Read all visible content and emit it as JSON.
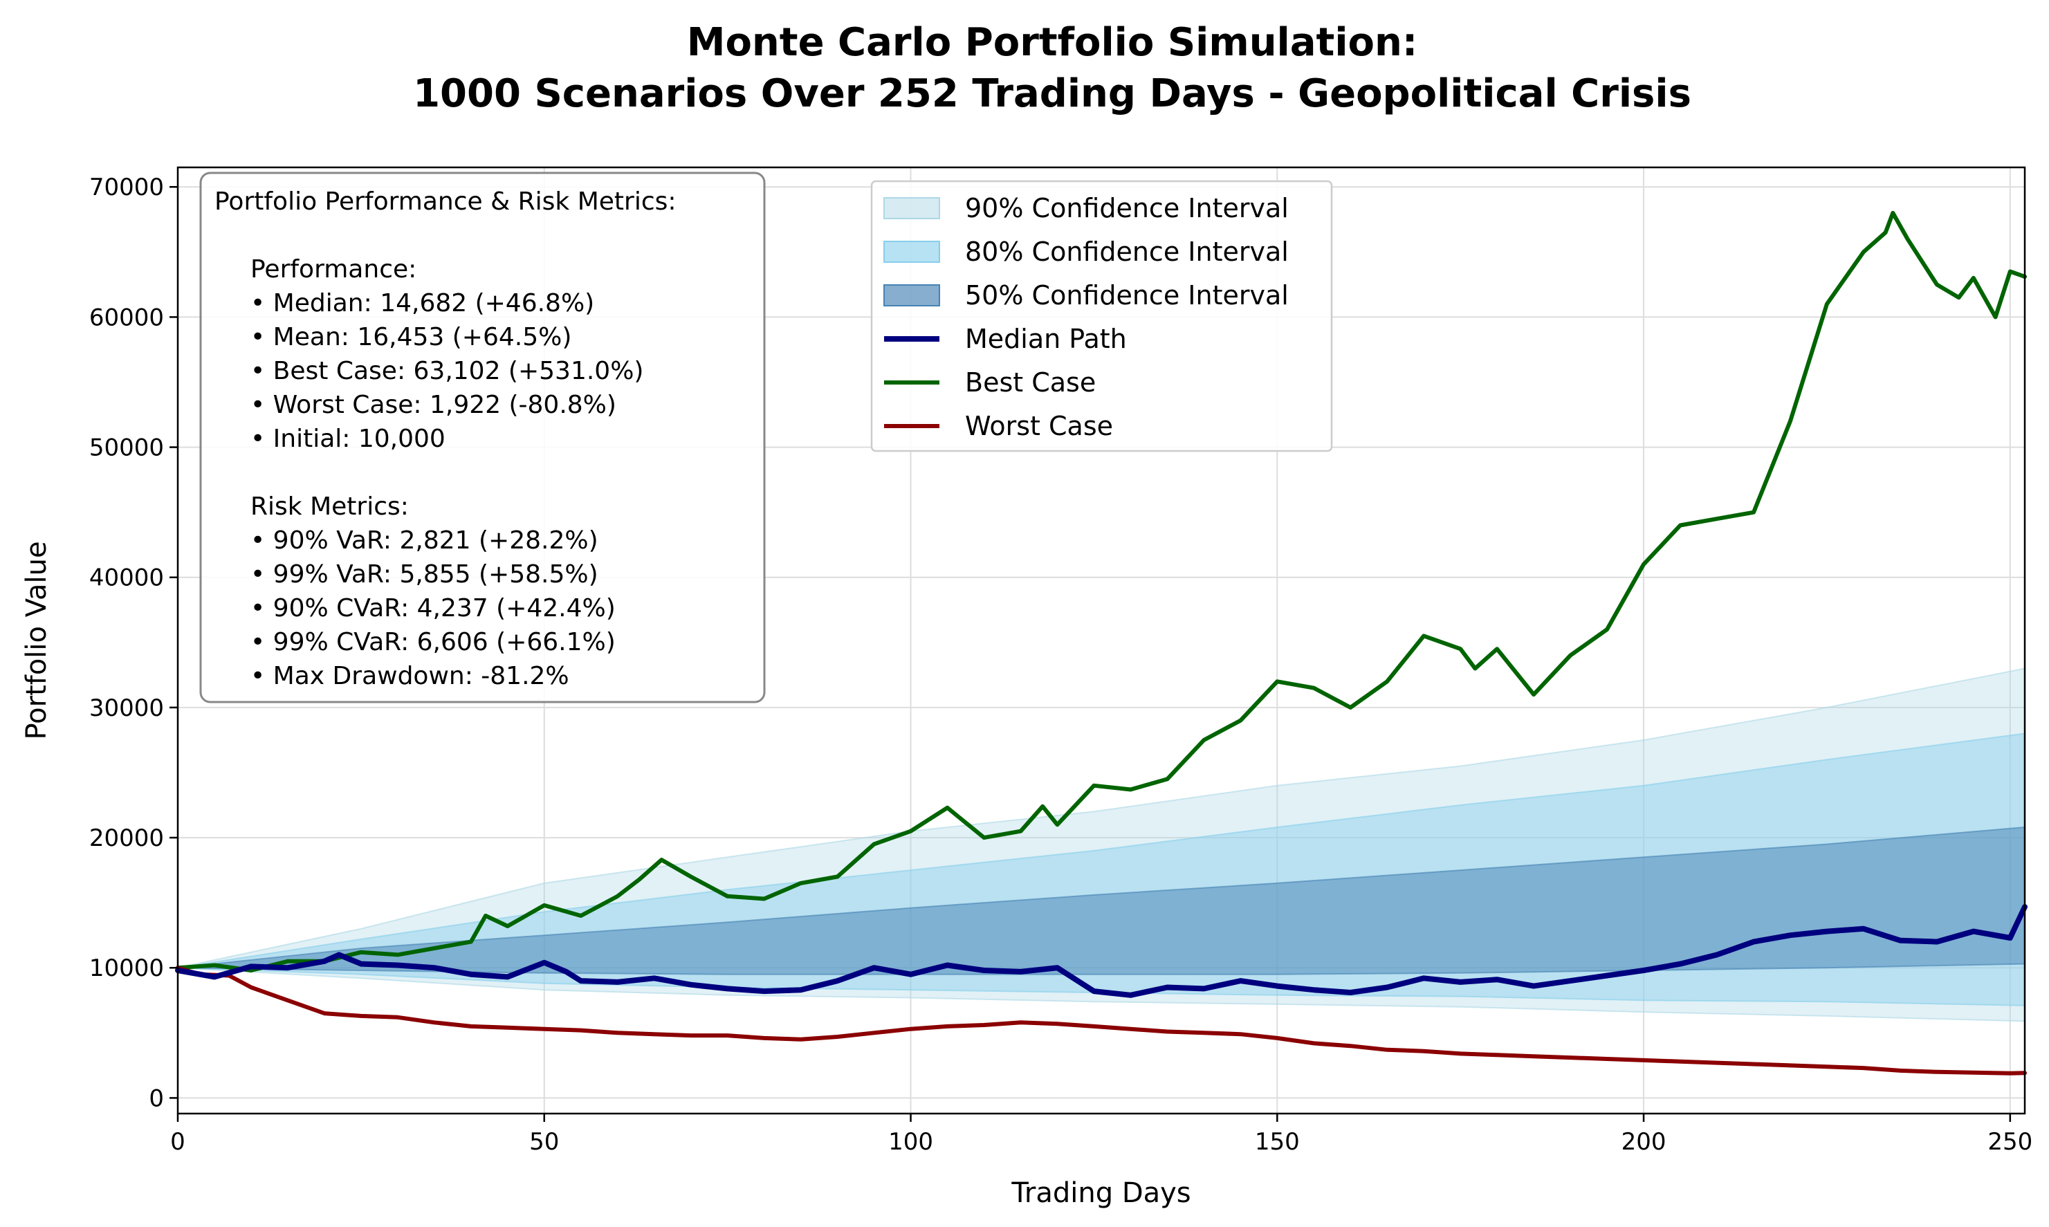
{
  "chart_data": {
    "type": "line",
    "title_lines": [
      "Monte Carlo Portfolio Simulation:",
      "1000 Scenarios Over 252 Trading Days - Geopolitical Crisis"
    ],
    "xlabel": "Trading Days",
    "ylabel": "Portfolio Value",
    "xlim": [
      0,
      252
    ],
    "ylim": [
      -1200,
      71500
    ],
    "x_ticks": [
      0,
      50,
      100,
      150,
      200,
      250
    ],
    "y_ticks": [
      0,
      10000,
      20000,
      30000,
      40000,
      50000,
      60000,
      70000
    ],
    "grid": true,
    "legend_position": "top-center",
    "bands": [
      {
        "name": "90% Confidence Interval",
        "color": "#add8e6",
        "x": [
          0,
          25,
          50,
          75,
          100,
          125,
          150,
          175,
          200,
          225,
          252
        ],
        "lower": [
          10000,
          9200,
          8300,
          7900,
          7700,
          7400,
          7200,
          7000,
          6600,
          6300,
          5900
        ],
        "upper": [
          10000,
          13000,
          16500,
          18500,
          20500,
          22000,
          24000,
          25500,
          27500,
          30000,
          33000
        ]
      },
      {
        "name": "80% Confidence Interval",
        "color": "#87ceeb",
        "x": [
          0,
          25,
          50,
          75,
          100,
          125,
          150,
          175,
          200,
          225,
          252
        ],
        "lower": [
          10000,
          9500,
          8800,
          8500,
          8300,
          8100,
          7900,
          7800,
          7500,
          7400,
          7100
        ],
        "upper": [
          10000,
          12200,
          14300,
          16000,
          17500,
          19000,
          20800,
          22500,
          24000,
          26000,
          28000
        ]
      },
      {
        "name": "50% Confidence Interval",
        "color": "#4682b4",
        "x": [
          0,
          25,
          50,
          75,
          100,
          125,
          150,
          175,
          200,
          225,
          252
        ],
        "lower": [
          10000,
          9800,
          9600,
          9500,
          9500,
          9500,
          9500,
          9600,
          9800,
          10000,
          10300
        ],
        "upper": [
          10000,
          11500,
          12500,
          13500,
          14600,
          15600,
          16500,
          17500,
          18500,
          19500,
          20800
        ]
      }
    ],
    "series": [
      {
        "name": "Median Path",
        "color": "#00007f",
        "width": 8,
        "x": [
          0,
          5,
          10,
          15,
          20,
          22,
          25,
          30,
          35,
          40,
          45,
          50,
          53,
          55,
          60,
          65,
          70,
          75,
          80,
          85,
          90,
          95,
          100,
          105,
          110,
          115,
          120,
          125,
          130,
          135,
          140,
          145,
          150,
          155,
          160,
          165,
          170,
          175,
          180,
          185,
          190,
          195,
          200,
          205,
          210,
          215,
          220,
          225,
          230,
          235,
          240,
          245,
          250,
          252
        ],
        "y": [
          9800,
          9300,
          10100,
          10000,
          10500,
          11000,
          10300,
          10200,
          10000,
          9500,
          9300,
          10400,
          9700,
          9000,
          8900,
          9200,
          8700,
          8400,
          8200,
          8300,
          9000,
          10000,
          9500,
          10200,
          9800,
          9700,
          10000,
          8200,
          7900,
          8500,
          8400,
          9000,
          8600,
          8300,
          8100,
          8500,
          9200,
          8900,
          9100,
          8600,
          9000,
          9400,
          9800,
          10300,
          11000,
          12000,
          12500,
          12800,
          13000,
          12100,
          12000,
          12800,
          12300,
          14682
        ]
      },
      {
        "name": "Best Case",
        "color": "#006400",
        "width": 6,
        "x": [
          0,
          5,
          10,
          15,
          20,
          25,
          30,
          35,
          40,
          42,
          45,
          50,
          55,
          60,
          63,
          66,
          70,
          75,
          80,
          85,
          90,
          95,
          100,
          105,
          110,
          115,
          118,
          120,
          125,
          130,
          135,
          140,
          145,
          150,
          155,
          160,
          165,
          170,
          175,
          177,
          180,
          185,
          190,
          195,
          200,
          205,
          210,
          215,
          220,
          225,
          230,
          233,
          234,
          236,
          240,
          243,
          245,
          248,
          250,
          252
        ],
        "y": [
          10000,
          10200,
          9800,
          10500,
          10500,
          11200,
          11000,
          11500,
          12000,
          14000,
          13200,
          14800,
          14000,
          15500,
          16800,
          18300,
          17000,
          15500,
          15300,
          16500,
          17000,
          19500,
          20500,
          22300,
          20000,
          20500,
          22400,
          21000,
          24000,
          23700,
          24500,
          27500,
          29000,
          32000,
          31500,
          30000,
          32000,
          35500,
          34500,
          33000,
          34500,
          31000,
          34000,
          36000,
          41000,
          44000,
          44500,
          45000,
          52000,
          61000,
          65000,
          66500,
          68000,
          66000,
          62500,
          61500,
          63000,
          60000,
          63500,
          63102
        ]
      },
      {
        "name": "Worst Case",
        "color": "#8b0000",
        "width": 6,
        "x": [
          0,
          3,
          7,
          10,
          15,
          20,
          25,
          30,
          35,
          40,
          45,
          50,
          55,
          60,
          65,
          70,
          75,
          80,
          85,
          90,
          95,
          100,
          105,
          110,
          115,
          120,
          125,
          130,
          135,
          140,
          145,
          150,
          155,
          160,
          165,
          170,
          175,
          180,
          185,
          190,
          195,
          200,
          205,
          210,
          215,
          220,
          225,
          230,
          235,
          240,
          245,
          250,
          252
        ],
        "y": [
          10000,
          9500,
          9400,
          8500,
          7500,
          6500,
          6300,
          6200,
          5800,
          5500,
          5400,
          5300,
          5200,
          5000,
          4900,
          4800,
          4800,
          4600,
          4500,
          4700,
          5000,
          5300,
          5500,
          5600,
          5800,
          5700,
          5500,
          5300,
          5100,
          5000,
          4900,
          4600,
          4200,
          4000,
          3700,
          3600,
          3400,
          3300,
          3200,
          3100,
          3000,
          2900,
          2800,
          2700,
          2600,
          2500,
          2400,
          2300,
          2100,
          2000,
          1950,
          1900,
          1922
        ]
      }
    ],
    "legend_entries": [
      "90% Confidence Interval",
      "80% Confidence Interval",
      "50% Confidence Interval",
      "Median Path",
      "Best Case",
      "Worst Case"
    ],
    "metrics_box": [
      "Portfolio Performance & Risk Metrics:",
      "",
      "Performance:",
      "• Median: 14,682 (+46.8%)",
      "• Mean: 16,453 (+64.5%)",
      "• Best Case: 63,102 (+531.0%)",
      "• Worst Case: 1,922 (-80.8%)",
      "• Initial: 10,000",
      "",
      "Risk Metrics:",
      "• 90% VaR: 2,821 (+28.2%)",
      "• 99% VaR: 5,855 (+58.5%)",
      "• 90% CVaR: 4,237 (+42.4%)",
      "• 99% CVaR: 6,606 (+66.1%)",
      "• Max Drawdown: -81.2%"
    ]
  }
}
